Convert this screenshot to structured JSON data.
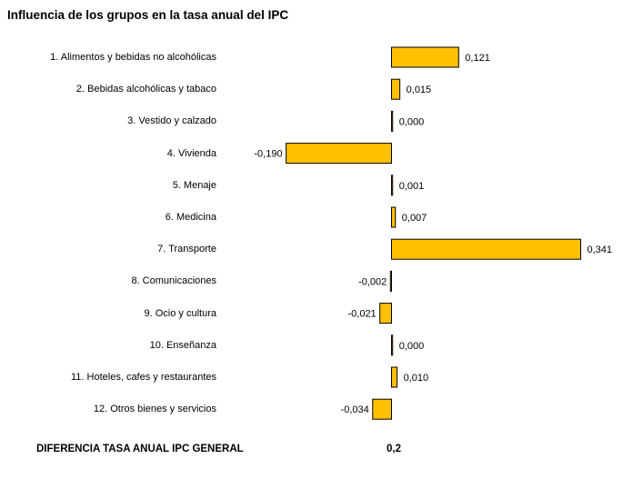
{
  "title": "Influencia de los grupos en la tasa anual del IPC",
  "footer": {
    "label": "DIFERENCIA TASA ANUAL IPC GENERAL",
    "value": "0,2"
  },
  "colors": {
    "bar_fill": "#FFC000",
    "bar_stroke": "#000000"
  },
  "chart_data": {
    "type": "bar",
    "orientation": "horizontal",
    "title": "Influencia de los grupos en la tasa anual del IPC",
    "categories": [
      "1. Alimentos y bebidas no alcohólicas",
      "2. Bebidas alcohólicas y tabaco",
      "3. Vestido y calzado",
      "4. Vivienda",
      "5. Menaje",
      "6. Medicina",
      "7. Transporte",
      "8. Comunicaciones",
      "9. Ocio y cultura",
      "10. Enseñanza",
      "11. Hoteles, cafes y restaurantes",
      "12. Otros bienes y servicios"
    ],
    "values": [
      0.121,
      0.015,
      0.0,
      -0.19,
      0.001,
      0.007,
      0.341,
      -0.002,
      -0.021,
      0.0,
      0.01,
      -0.034
    ],
    "value_labels": [
      "0,121",
      "0,015",
      "0,000",
      "-0,190",
      "0,001",
      "0,007",
      "0,341",
      "-0,002",
      "-0,021",
      "0,000",
      "0,010",
      "-0,034"
    ],
    "xlim": [
      -0.2,
      0.35
    ],
    "grid": false,
    "legend": "none"
  }
}
